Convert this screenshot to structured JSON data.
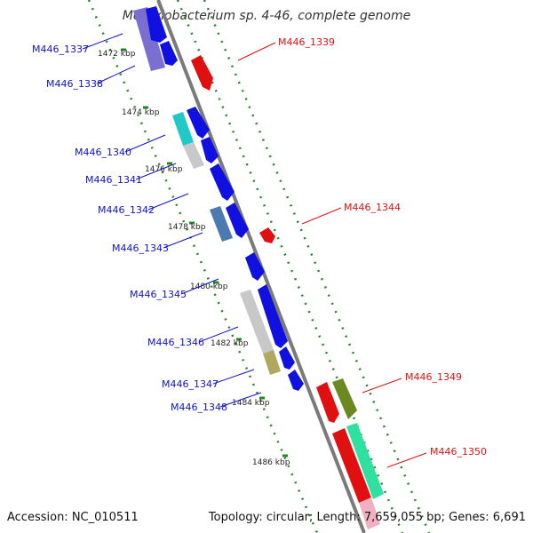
{
  "title": "Methylobacterium sp. 4-46, complete genome",
  "footer": {
    "accession": "Accession: NC_010511",
    "summary": "Topology: circular; Length: 7,659,055 bp; Genes: 6,691"
  },
  "colors": {
    "forward_label": "#1111cc",
    "reverse_label": "#dd1111",
    "backbone": "#7a7a7a",
    "ticks": "#228822"
  },
  "kbp_ticks": [
    "1472 kbp",
    "1474 kbp",
    "1476 kbp",
    "1478 kbp",
    "1480 kbp",
    "1482 kbp",
    "1484 kbp",
    "1486 kbp"
  ],
  "gene_labels": {
    "left": [
      "M446_1337",
      "M446_1338",
      "M446_1340",
      "M446_1341",
      "M446_1342",
      "M446_1343",
      "M446_1345",
      "M446_1346",
      "M446_1347",
      "M446_1348"
    ],
    "right": [
      "M446_1339",
      "M446_1344",
      "M446_1349",
      "M446_1350"
    ]
  },
  "gene_colors": {
    "blue": "#1010e0",
    "purple": "#7a6fd0",
    "cyan": "#20c8c8",
    "light_gray": "#c8c8c8",
    "steel_blue": "#4a7ab0",
    "khaki": "#b0a860",
    "red": "#e01010",
    "olive": "#6a8a20",
    "mint": "#30e0a0"
  }
}
